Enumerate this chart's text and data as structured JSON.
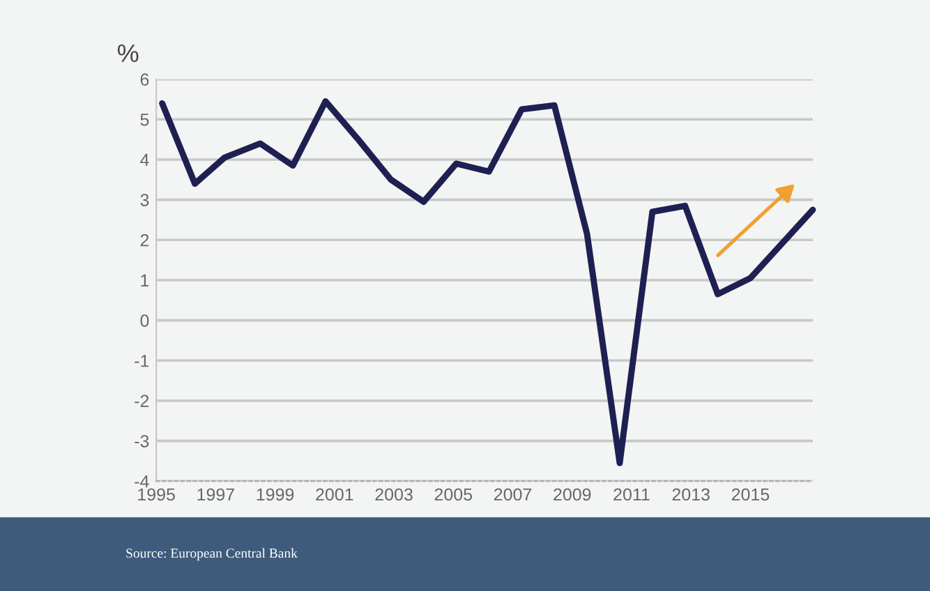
{
  "chart_data": {
    "type": "line",
    "ylabel": "%",
    "x": [
      1995.2,
      1996.3,
      1997.3,
      1998.5,
      1999.6,
      2000.7,
      2001.8,
      2002.9,
      2004.0,
      2005.1,
      2006.2,
      2007.3,
      2008.4,
      2009.5,
      2010.6,
      2011.7,
      2012.8,
      2013.9,
      2015.0,
      2017.1
    ],
    "series": [
      {
        "color": "#1e2052",
        "values": [
          5.4,
          3.4,
          4.05,
          4.4,
          3.85,
          5.45,
          4.5,
          3.5,
          2.95,
          3.9,
          3.7,
          5.25,
          5.35,
          2.15,
          -3.55,
          2.7,
          2.85,
          0.65,
          1.05,
          2.75
        ]
      }
    ],
    "xlim": [
      1995,
      2017.1
    ],
    "xticks": [
      1995,
      1997,
      1999,
      2001,
      2003,
      2005,
      2007,
      2009,
      2011,
      2013,
      2015
    ],
    "ylim": [
      -4,
      6
    ],
    "yticks": [
      -4,
      -3,
      -2,
      -1,
      0,
      1,
      2,
      3,
      4,
      5,
      6
    ],
    "grid": "y",
    "marker": "none",
    "line_style": "solid",
    "annotations": [
      "Source: European Central Bank"
    ]
  }
}
